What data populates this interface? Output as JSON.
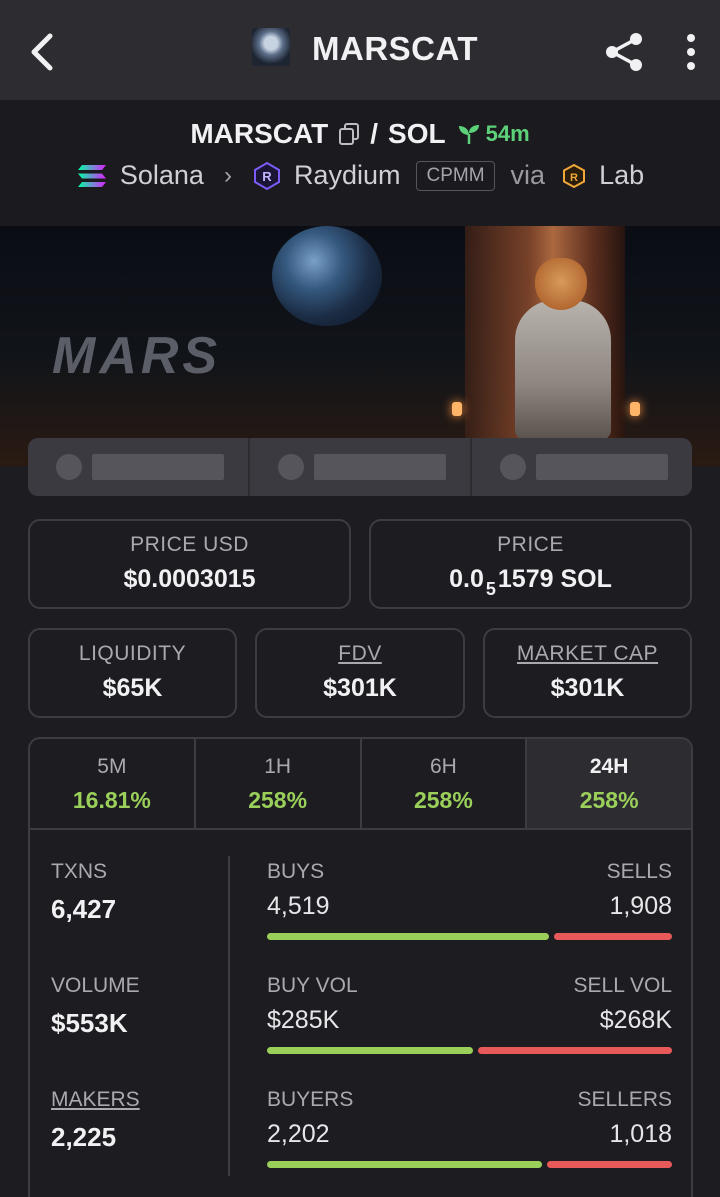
{
  "appbar": {
    "title": "MARSCAT"
  },
  "pair": {
    "base": "MARSCAT",
    "separator": "/",
    "quote": "SOL",
    "age": "54m",
    "chain": "Solana",
    "dex": "Raydium",
    "pool_type": "CPMM",
    "via": "via",
    "launchpad": "Lab"
  },
  "banner": {
    "wordmark": "MARS"
  },
  "cards": {
    "price_usd": {
      "label": "PRICE USD",
      "value": "$0.0003015"
    },
    "price": {
      "label": "PRICE",
      "prefix": "0.0",
      "zeros": "5",
      "suffix": "1579 SOL"
    },
    "liquidity": {
      "label": "LIQUIDITY",
      "value": "$65K"
    },
    "fdv": {
      "label": "FDV",
      "value": "$301K"
    },
    "market_cap": {
      "label": "MARKET CAP",
      "value": "$301K"
    }
  },
  "tabs": [
    {
      "name": "5M",
      "value": "16.81%"
    },
    {
      "name": "1H",
      "value": "258%"
    },
    {
      "name": "6H",
      "value": "258%"
    },
    {
      "name": "24H",
      "value": "258%"
    }
  ],
  "active_tab": "24H",
  "stats": {
    "txns": {
      "label": "TXNS",
      "value": "6,427"
    },
    "volume": {
      "label": "VOLUME",
      "value": "$553K"
    },
    "makers": {
      "label": "MAKERS",
      "value": "2,225"
    },
    "buys_sells": {
      "left_label": "BUYS",
      "right_label": "SELLS",
      "left_value": "4,519",
      "right_value": "1,908",
      "buy_fraction": 0.703
    },
    "buy_sell_vol": {
      "left_label": "BUY VOL",
      "right_label": "SELL VOL",
      "left_value": "$285K",
      "right_value": "$268K",
      "buy_fraction": 0.515
    },
    "buyers_sellers": {
      "left_label": "BUYERS",
      "right_label": "SELLERS",
      "left_value": "2,202",
      "right_value": "1,018",
      "buy_fraction": 0.684
    }
  },
  "colors": {
    "positive": "#9ad05a",
    "negative": "#e85a5a",
    "age": "#5dd17a"
  }
}
